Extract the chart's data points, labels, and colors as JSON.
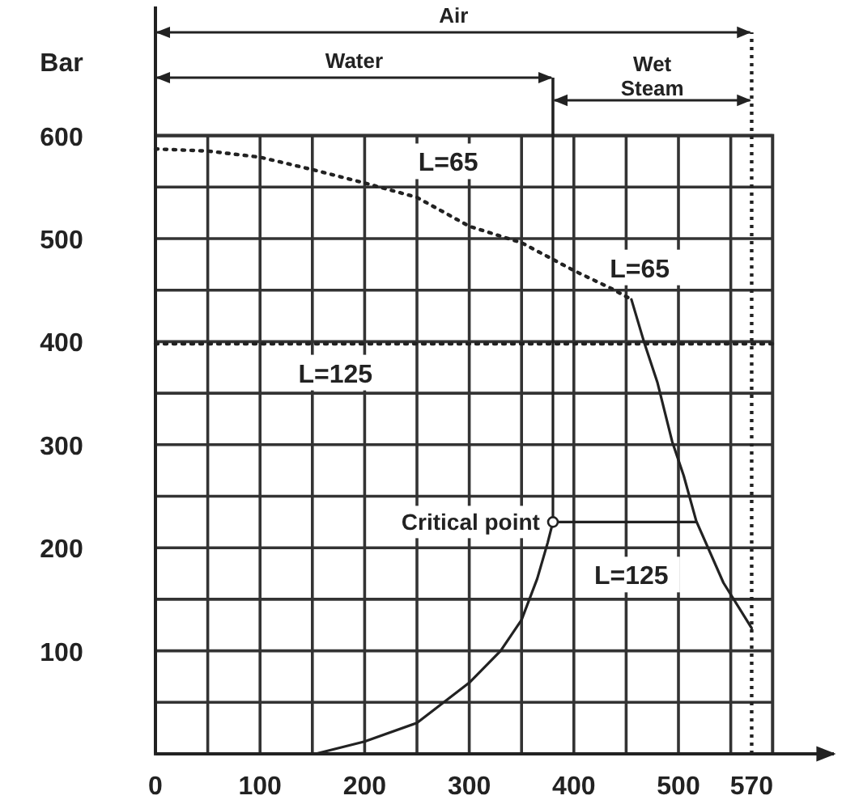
{
  "chart_data": {
    "type": "line",
    "ylabel": "Bar",
    "xlim": [
      0,
      590
    ],
    "ylim": [
      0,
      600
    ],
    "xticks": [
      0,
      {
        "value": 50,
        "label": null
      },
      100,
      {
        "value": 150,
        "label": null
      },
      200,
      {
        "value": 250,
        "label": null
      },
      300,
      {
        "value": 350,
        "label": null
      },
      400,
      {
        "value": 450,
        "label": null
      },
      500,
      {
        "value": 550,
        "label": null
      },
      570
    ],
    "yticks": [
      {
        "value": 50,
        "label": null
      },
      100,
      {
        "value": 150,
        "label": null
      },
      200,
      {
        "value": 250,
        "label": null
      },
      300,
      {
        "value": 350,
        "label": null
      },
      400,
      {
        "value": 450,
        "label": null
      },
      500,
      {
        "value": 550,
        "label": null
      },
      600
    ],
    "grid": true,
    "series": [
      {
        "color": "#222222",
        "line_style": "dotted",
        "x": [
          0,
          50,
          100,
          150,
          200,
          250,
          300,
          350,
          400,
          435,
          455
        ],
        "values": [
          587,
          585,
          579,
          567,
          554,
          540,
          512,
          496,
          469,
          452,
          441
        ]
      },
      {
        "color": "#222222",
        "line_style": "solid",
        "x": [
          455,
          467,
          480,
          494,
          505,
          517,
          543,
          570
        ],
        "values": [
          441,
          400,
          360,
          303,
          270,
          226,
          166,
          122
        ]
      },
      {
        "color": "#222222",
        "line_style": "dotted",
        "x": [
          0,
          590
        ],
        "values": [
          398,
          398
        ]
      },
      {
        "color": "#222222",
        "line_style": "solid",
        "x": [
          153,
          200,
          250,
          300,
          330,
          350,
          365,
          375,
          380
        ],
        "values": [
          0,
          12,
          30,
          69,
          100,
          130,
          170,
          205,
          225
        ]
      },
      {
        "color": "#222222",
        "line_style": "solid",
        "x": [
          380,
          517
        ],
        "values": [
          225,
          225
        ]
      },
      {
        "color": "#222222",
        "line_style": "solid",
        "x": [
          380,
          380
        ],
        "values": [
          225,
          600
        ]
      }
    ],
    "ref_lines": [
      {
        "axis": "x",
        "value": 570,
        "line_style": "dotted"
      }
    ],
    "annotations": [
      {
        "text": "Air"
      },
      {
        "text": "Water"
      },
      {
        "text": "Wet Steam"
      },
      {
        "text": "Critical point",
        "x": 380,
        "y": 225
      },
      "L=65",
      "L=65",
      "L=125",
      "L=125"
    ]
  }
}
